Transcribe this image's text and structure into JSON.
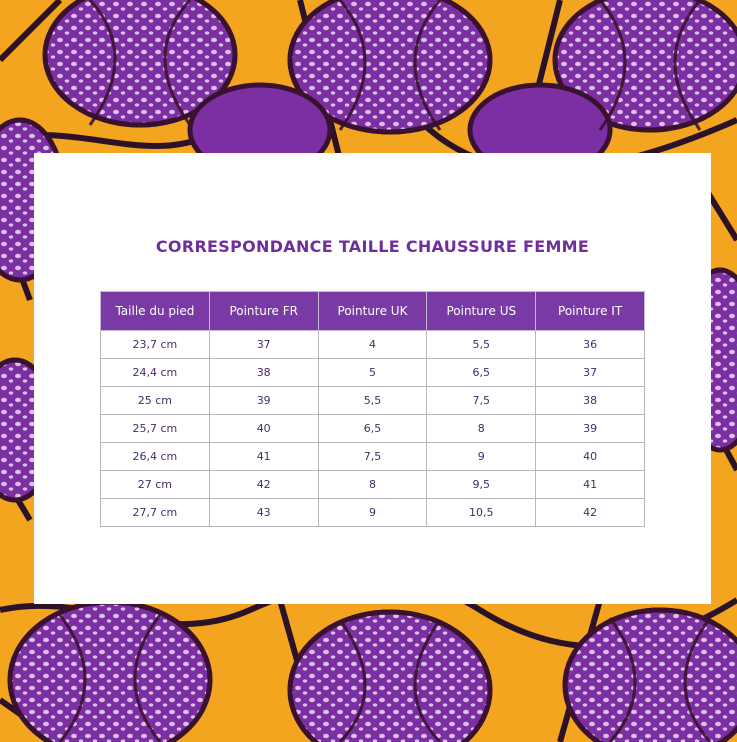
{
  "title": "CORRESPONDANCE TAILLE CHAUSSURE FEMME",
  "table": {
    "headers": [
      "Taille du pied",
      "Pointure FR",
      "Pointure UK",
      "Pointure US",
      "Pointure IT"
    ],
    "rows": [
      [
        "23,7 cm",
        "37",
        "4",
        "5,5",
        "36"
      ],
      [
        "24,4 cm",
        "38",
        "5",
        "6,5",
        "37"
      ],
      [
        "25 cm",
        "39",
        "5,5",
        "7,5",
        "38"
      ],
      [
        "25,7 cm",
        "40",
        "6,5",
        "8",
        "39"
      ],
      [
        "26,4 cm",
        "41",
        "7,5",
        "9",
        "40"
      ],
      [
        "27 cm",
        "42",
        "8",
        "9,5",
        "41"
      ],
      [
        "27,7 cm",
        "43",
        "9",
        "10,5",
        "42"
      ]
    ]
  },
  "colors": {
    "title": "#6f2f9a",
    "header_bg": "#7a3aa6",
    "header_text": "#ffffff",
    "background_yellow": "#f3a51f",
    "background_purple": "#7b2fa3"
  }
}
